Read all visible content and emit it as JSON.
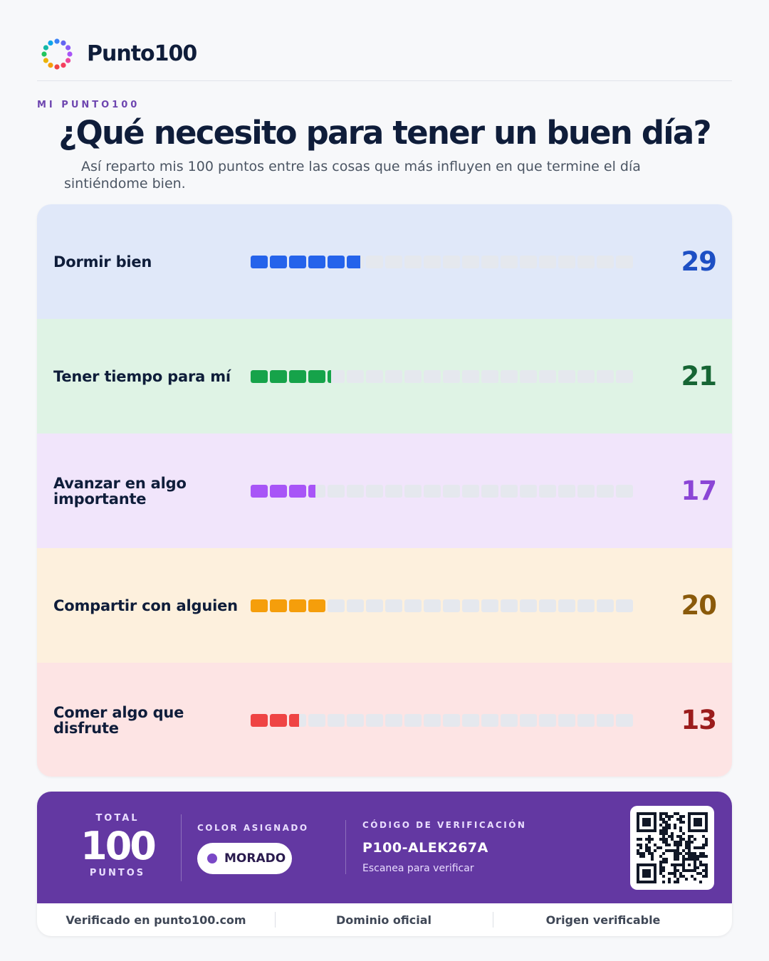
{
  "brand": {
    "name": "Punto100",
    "logo_dot_colors": [
      "#ef4444",
      "#f59e0b",
      "#eab308",
      "#22c55e",
      "#14b8a6",
      "#0ea5e9",
      "#3b82f6",
      "#6366f1",
      "#8b5cf6",
      "#a855f7",
      "#ec4899",
      "#f43f5e"
    ]
  },
  "header": {
    "eyebrow": "MI PUNTO100",
    "title": "¿Qué necesito para tener un buen día?",
    "subtitle": "Así reparto mis 100 puntos entre las cosas que más influyen en que termine el día sintiéndome bien."
  },
  "distribution": {
    "segments_per_bar": 20,
    "points_per_segment": 5,
    "items": [
      {
        "label": "Dormir bien",
        "points": 29,
        "bar_color": "#2563eb",
        "value_color": "#1d4fc4",
        "background": "#e0e8f9"
      },
      {
        "label": "Tener tiempo para mí",
        "points": 21,
        "bar_color": "#16a34a",
        "value_color": "#166534",
        "background": "#dff3e5"
      },
      {
        "label": "Avanzar en algo importante",
        "points": 17,
        "bar_color": "#a855f7",
        "value_color": "#8b45d6",
        "background": "#f1e5fb"
      },
      {
        "label": "Compartir con alguien",
        "points": 20,
        "bar_color": "#f59e0b",
        "value_color": "#8a5a0b",
        "background": "#fdf0dd"
      },
      {
        "label": "Comer algo que disfrute",
        "points": 13,
        "bar_color": "#ef4444",
        "value_color": "#9b1c1c",
        "background": "#fde4e4"
      }
    ]
  },
  "footer": {
    "total_label": "TOTAL",
    "total_value": "100",
    "total_unit": "PUNTOS",
    "color_label": "COLOR ASIGNADO",
    "color_name": "MORADO",
    "color_hex": "#7a48c6",
    "code_label": "CÓDIGO DE VERIFICACIÓN",
    "code_value": "P100-ALEK267A",
    "code_hint": "Escanea para verificar",
    "accent": "#6338a2",
    "badges": [
      "Verificado en punto100.com",
      "Dominio oficial",
      "Origen verificable"
    ]
  }
}
